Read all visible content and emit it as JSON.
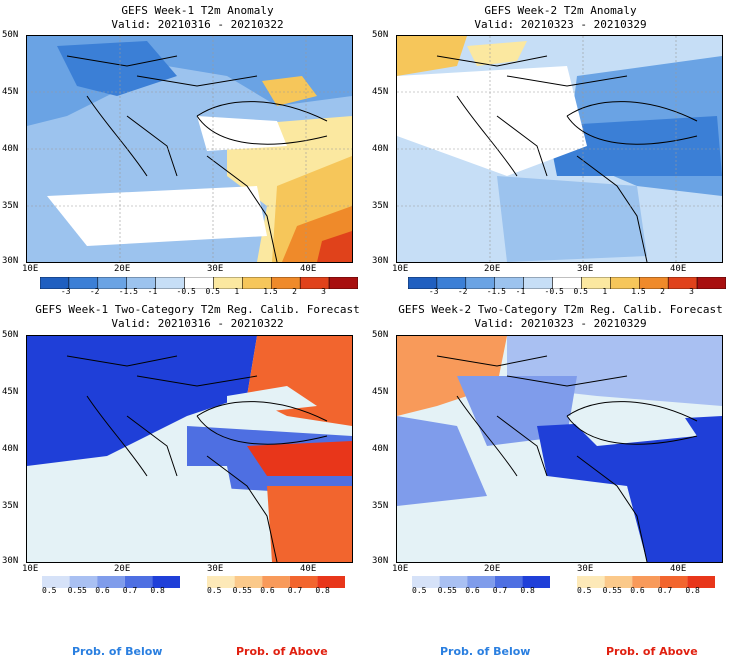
{
  "panels": [
    {
      "title": "GEFS Week-1 T2m Anomaly",
      "valid": "Valid: 20210316 - 20210322"
    },
    {
      "title": "GEFS Week-2 T2m Anomaly",
      "valid": "Valid: 20210323 - 20210329"
    },
    {
      "title": "GEFS Week-1 Two-Category T2m Reg. Calib. Forecast",
      "valid": "Valid: 20210316 - 20210322"
    },
    {
      "title": "GEFS Week-2 Two-Category T2m Reg. Calib. Forecast",
      "valid": "Valid: 20210323 - 20210329"
    }
  ],
  "axes": {
    "lat_labels": [
      "50N",
      "45N",
      "40N",
      "35N",
      "30N"
    ],
    "lon_labels": [
      "10E",
      "20E",
      "30E",
      "40E"
    ]
  },
  "anomaly_colorbar": {
    "labels": [
      "-3",
      "-2",
      "-1.5",
      "-1",
      "-0.5",
      "0.5",
      "1",
      "1.5",
      "2",
      "3"
    ],
    "colors": [
      "#1f5fc0",
      "#3b7fd6",
      "#6aa3e4",
      "#9cc3ee",
      "#c6def6",
      "#ffffff",
      "#fbe8a0",
      "#f6c65a",
      "#ef8a2a",
      "#e0421b",
      "#a80f0f"
    ]
  },
  "prob_colorbars": {
    "below": {
      "labels": [
        "0.5",
        "0.55",
        "0.6",
        "0.7",
        "0.8"
      ],
      "colors": [
        "#d6e2f8",
        "#a9c0f2",
        "#7f9ceb",
        "#4e6fe2",
        "#1f3fd8"
      ]
    },
    "above": {
      "labels": [
        "0.5",
        "0.55",
        "0.6",
        "0.7",
        "0.8"
      ],
      "colors": [
        "#fde9b8",
        "#fbc98a",
        "#f89a5a",
        "#f2652e",
        "#e8361a"
      ]
    }
  },
  "legend": {
    "below": "Prob. of Below",
    "above": "Prob. of Above",
    "below_color": "#2a7fe0",
    "above_color": "#e02010"
  }
}
